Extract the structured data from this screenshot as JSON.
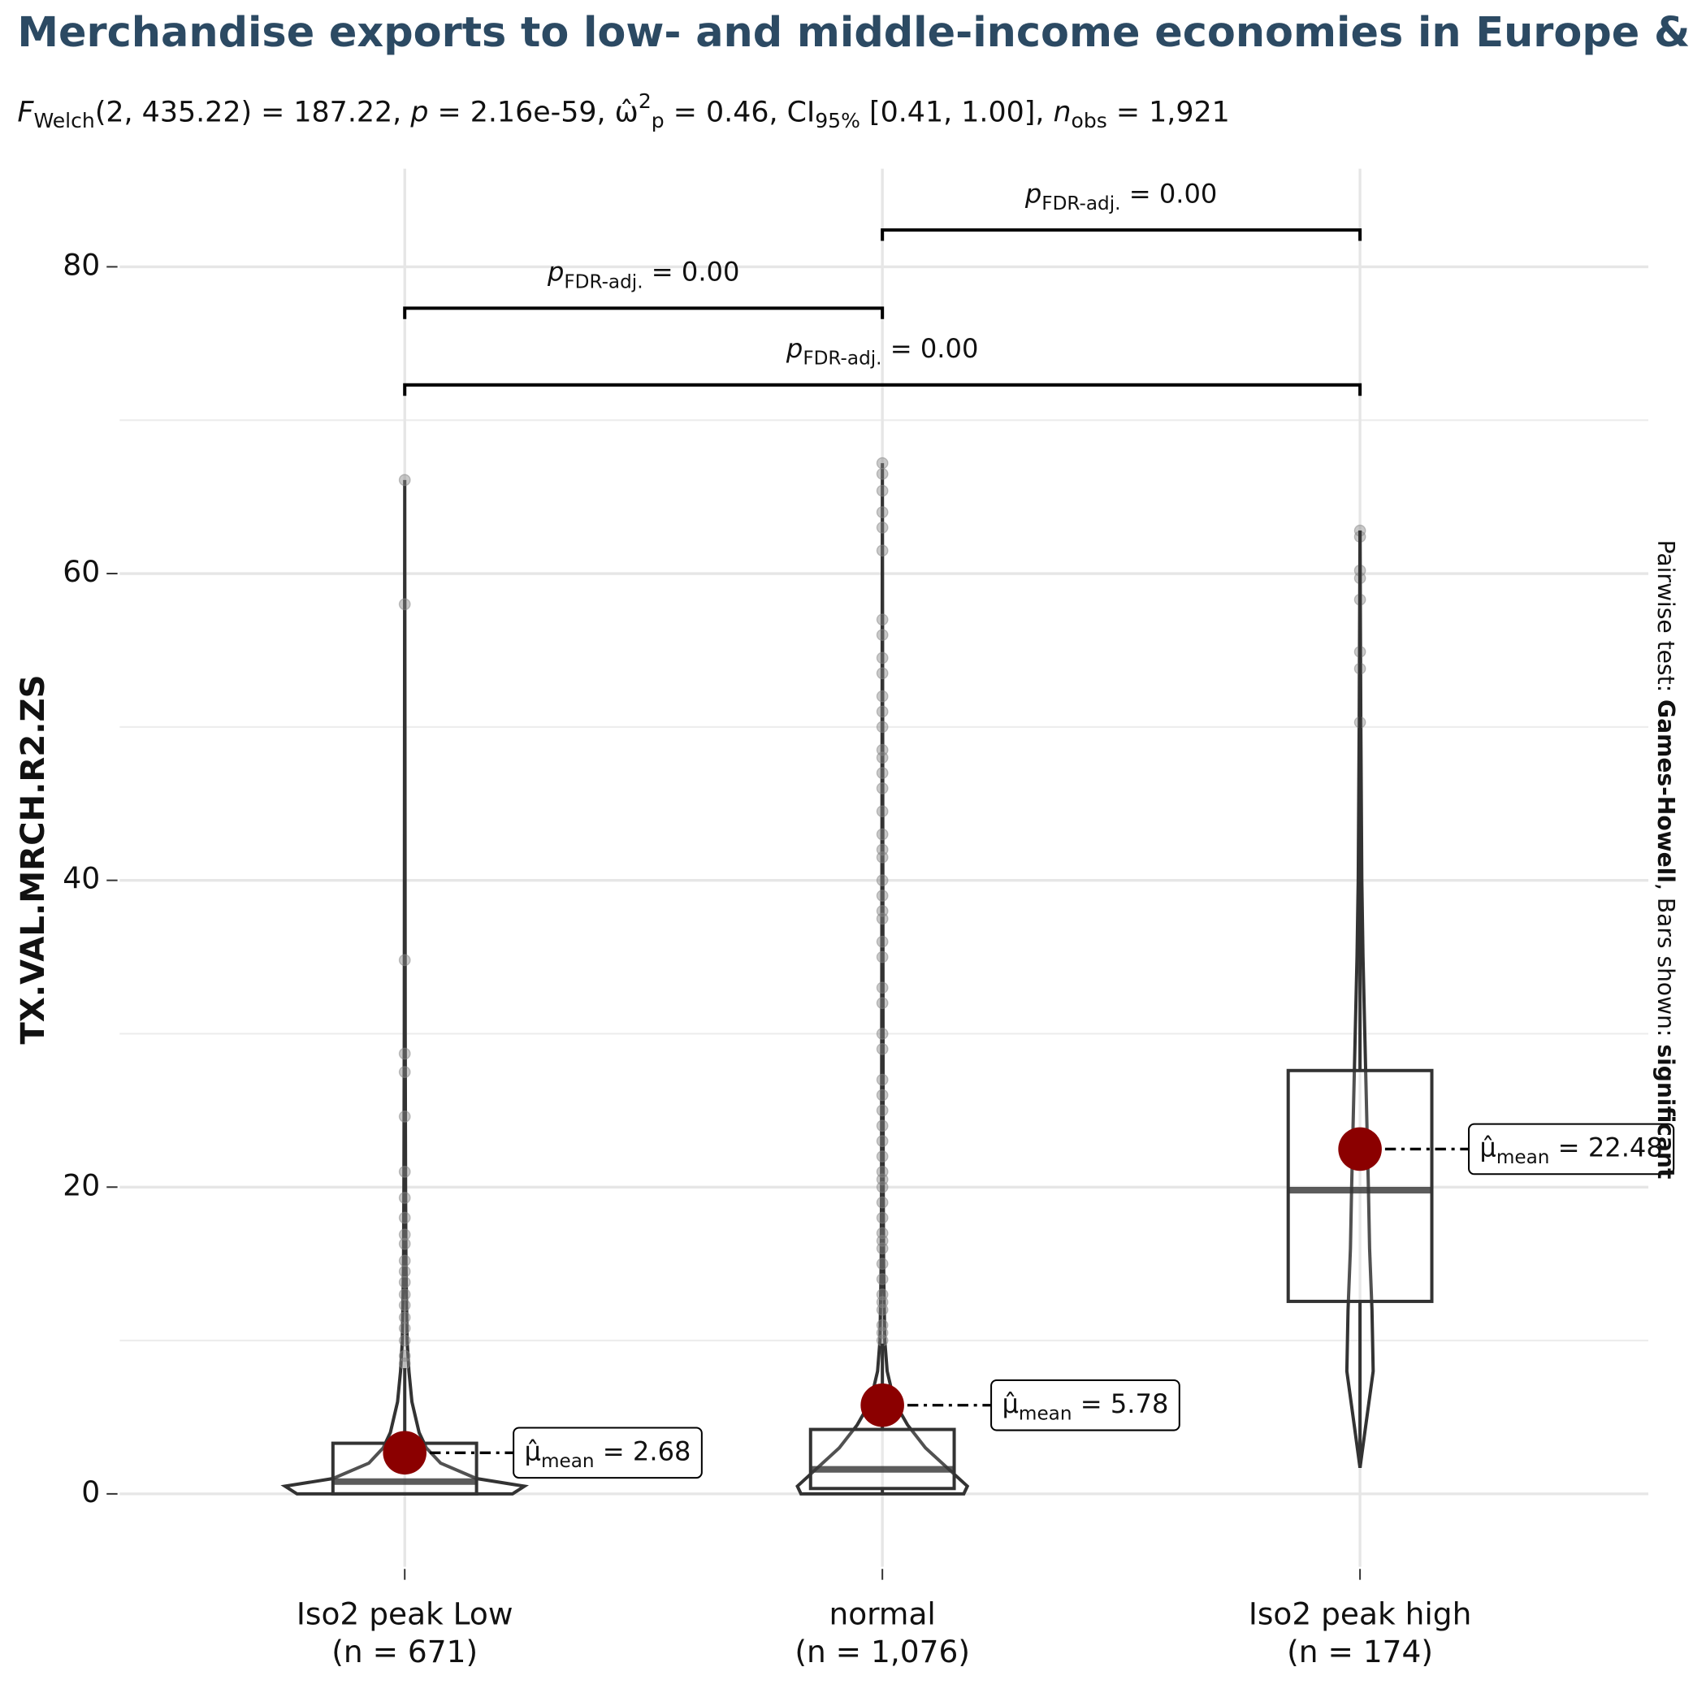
{
  "chart_data": {
    "type": "violin",
    "title": "Merchandise exports to low- and middle-income economies in Europe & Central Asia",
    "subtitle": [
      {
        "text": "F",
        "style": "italic"
      },
      {
        "text": "Welch",
        "style": "sub"
      },
      {
        "text": "(2, 435.22) = 187.22, ",
        "style": "normal"
      },
      {
        "text": "p",
        "style": "italic"
      },
      {
        "text": " = 2.16e-59, ",
        "style": "normal"
      },
      {
        "text": "ω̂",
        "style": "normal"
      },
      {
        "text": "2",
        "style": "sup"
      },
      {
        "text": "p",
        "style": "sub"
      },
      {
        "text": " = 0.46, CI",
        "style": "normal"
      },
      {
        "text": "95%",
        "style": "sub"
      },
      {
        "text": " [0.41, 1.00], ",
        "style": "normal"
      },
      {
        "text": "n",
        "style": "italic"
      },
      {
        "text": "obs",
        "style": "sub"
      },
      {
        "text": " = 1,921",
        "style": "normal"
      }
    ],
    "y_label": "TX.VAL.MRCH.R2.ZS",
    "caption": [
      {
        "text": "Pairwise test: ",
        "style": "normal"
      },
      {
        "text": "Games-Howell",
        "style": "bold"
      },
      {
        "text": ", Bars shown: ",
        "style": "normal"
      },
      {
        "text": "significant",
        "style": "bold"
      }
    ],
    "ylim": [
      -4.75,
      86.4
    ],
    "yticks": [
      0,
      20,
      40,
      60,
      80
    ],
    "yminor": [
      10,
      30,
      50,
      70
    ],
    "grid": true,
    "categories": [
      "Iso2 peak  Low",
      "normal",
      "Iso2 peak  high"
    ],
    "n_labels": [
      "(n = 671)",
      "(n = 1,076)",
      "(n = 174)"
    ],
    "mean_color": "#8b0000",
    "point_color": "#888888",
    "mean_label": [
      {
        "text": "μ̂",
        "style": "normal"
      },
      {
        "text": "mean",
        "style": "sub"
      },
      {
        "text": " = ",
        "style": "normal"
      }
    ],
    "groups": [
      {
        "box": {
          "whisker_low": 0,
          "q1": 0,
          "median": 0.8,
          "q3": 3.3,
          "whisker_high": 8.2
        },
        "mean": 2.68,
        "points": [
          66.1,
          58,
          34.8,
          28.7,
          27.5,
          24.6,
          21,
          19.3,
          18,
          16.9,
          16.3,
          15.2,
          14.5,
          13.8,
          13,
          12.3,
          11.5,
          10.8,
          10,
          9,
          8.5
        ],
        "violin": {
          "y": [
            0,
            0.5,
            1,
            2,
            3,
            4,
            5,
            6,
            8,
            10,
            15,
            20,
            30,
            66.1
          ],
          "width": [
            0.9,
            1,
            0.6,
            0.3,
            0.18,
            0.12,
            0.09,
            0.06,
            0.035,
            0.02,
            0.01,
            0.007,
            0.004,
            0
          ]
        }
      },
      {
        "box": {
          "whisker_low": 0,
          "q1": 0.35,
          "median": 1.6,
          "q3": 4.2,
          "whisker_high": 9.8
        },
        "mean": 5.78,
        "points": [
          67.2,
          66.5,
          65.4,
          64,
          63,
          61.5,
          57,
          56,
          54.5,
          53.5,
          52,
          51,
          50,
          48.5,
          48,
          47,
          46,
          44.5,
          43,
          42,
          41.5,
          40,
          39,
          38,
          37.5,
          36,
          35,
          33,
          32,
          30,
          29,
          27,
          26,
          25,
          24,
          23,
          22,
          21,
          20.5,
          20,
          19,
          18,
          17,
          16.5,
          16,
          15,
          14,
          13,
          12.5,
          12,
          11,
          10.5,
          10
        ],
        "violin": {
          "y": [
            0,
            0.5,
            1.5,
            3,
            4.5,
            6,
            8,
            10,
            15,
            20,
            40,
            67.2
          ],
          "width": [
            0.68,
            0.71,
            0.57,
            0.36,
            0.21,
            0.1,
            0.04,
            0.02,
            0.01,
            0.007,
            0.004,
            0
          ]
        }
      },
      {
        "box": {
          "whisker_low": 1.7,
          "q1": 12.55,
          "median": 19.8,
          "q3": 27.6,
          "whisker_high": 62.8
        },
        "mean": 22.48,
        "points": [
          62.8,
          62.4,
          60.2,
          59.7,
          58.3,
          54.9,
          53.8,
          50.3
        ],
        "violin": {
          "y": [
            1.7,
            4,
            8,
            12,
            16,
            20,
            25,
            30,
            35,
            40,
            50,
            62.8
          ],
          "width": [
            0,
            0.04,
            0.11,
            0.1,
            0.08,
            0.07,
            0.055,
            0.04,
            0.025,
            0.015,
            0.007,
            0
          ]
        }
      }
    ],
    "comparisons": [
      {
        "from": 0,
        "to": 2,
        "y": 72.3,
        "label": [
          {
            "text": "p",
            "style": "italic"
          },
          {
            "text": "FDR-adj.",
            "style": "sub"
          },
          {
            "text": " = 0.00",
            "style": "normal"
          }
        ]
      },
      {
        "from": 0,
        "to": 1,
        "y": 77.3,
        "label": [
          {
            "text": "p",
            "style": "italic"
          },
          {
            "text": "FDR-adj.",
            "style": "sub"
          },
          {
            "text": " = 0.00",
            "style": "normal"
          }
        ]
      },
      {
        "from": 1,
        "to": 2,
        "y": 82.4,
        "label": [
          {
            "text": "p",
            "style": "italic"
          },
          {
            "text": "FDR-adj.",
            "style": "sub"
          },
          {
            "text": " = 0.00",
            "style": "normal"
          }
        ]
      }
    ]
  }
}
